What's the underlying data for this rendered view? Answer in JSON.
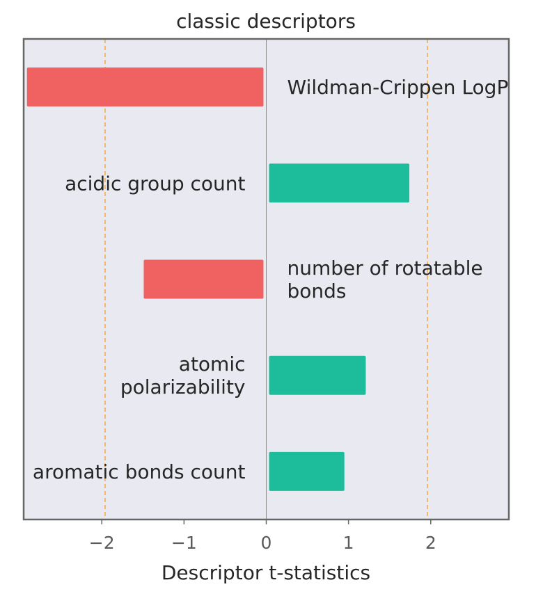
{
  "chart_data": {
    "type": "bar",
    "orientation": "horizontal",
    "title": "classic descriptors",
    "xlabel": "Descriptor t-statistics",
    "ylabel": "",
    "xlim": [
      -2.95,
      2.95
    ],
    "xticks": [
      -2,
      -1,
      0,
      1,
      2
    ],
    "xtick_labels": [
      "−2",
      "−1",
      "0",
      "1",
      "2"
    ],
    "reference_lines": [
      -1.96,
      1.96
    ],
    "categories": [
      "Wildman-Crippen LogP",
      "acidic group count",
      "number of rotatable bonds",
      "atomic polarizability",
      "aromatic bonds count"
    ],
    "category_lines": [
      [
        "Wildman-Crippen LogP"
      ],
      [
        "acidic group count"
      ],
      [
        "number of rotatable",
        "bonds"
      ],
      [
        "atomic",
        "polarizability"
      ],
      [
        "aromatic bonds count"
      ]
    ],
    "values": [
      -2.91,
      1.74,
      -1.49,
      1.21,
      0.95
    ],
    "grid": false,
    "colors": {
      "negative": "#f06262",
      "positive": "#1dbd9b",
      "reference": "#f5a742",
      "zero_line": "#8a8a8a",
      "background": "#e9eaf1",
      "frame": "#666666"
    }
  }
}
